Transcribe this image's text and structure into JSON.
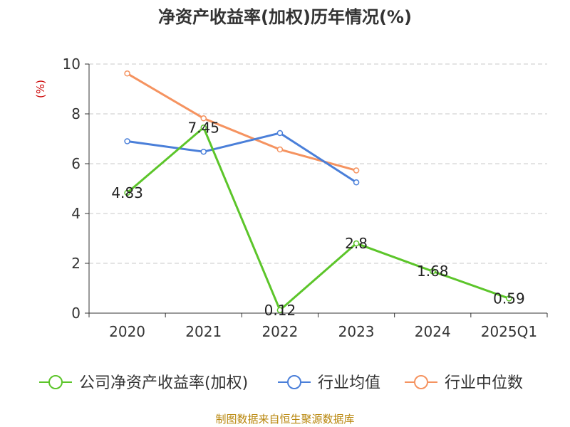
{
  "chart_data": {
    "type": "line",
    "title": "净资产收益率(加权)历年情况(%)",
    "ylabel": "(%)",
    "xlabel": "",
    "categories": [
      "2020",
      "2021",
      "2022",
      "2023",
      "2024",
      "2025Q1"
    ],
    "ylim": [
      0,
      10
    ],
    "yticks": [
      0,
      2,
      4,
      6,
      8,
      10
    ],
    "grid": true,
    "legend_position": "bottom",
    "series": [
      {
        "name": "公司净资产收益率(加权)",
        "color": "#5cc52a",
        "values": [
          4.83,
          7.45,
          0.12,
          2.8,
          1.68,
          0.59
        ],
        "labels": [
          "4.83",
          "7.45",
          "0.12",
          "2.8",
          "1.68",
          "0.59"
        ]
      },
      {
        "name": "行业均值",
        "color": "#4a7fd9",
        "values": [
          6.9,
          6.48,
          7.23,
          5.25,
          null,
          null
        ]
      },
      {
        "name": "行业中位数",
        "color": "#f59360",
        "values": [
          9.62,
          7.82,
          6.57,
          5.73,
          null,
          null
        ]
      }
    ]
  },
  "source": "制图数据来自恒生聚源数据库"
}
